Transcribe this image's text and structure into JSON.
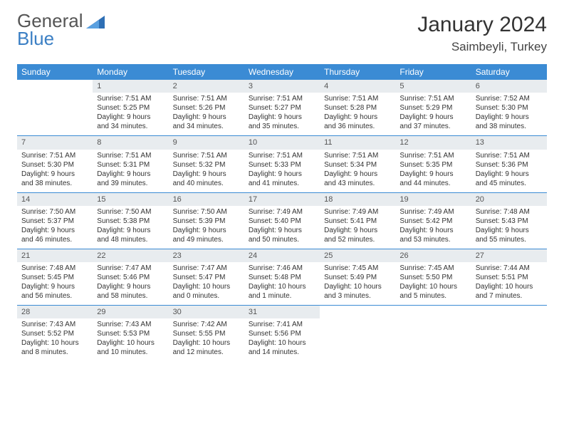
{
  "logo": {
    "word1": "General",
    "word2": "Blue"
  },
  "title": "January 2024",
  "location": "Saimbeyli, Turkey",
  "daynames": [
    "Sunday",
    "Monday",
    "Tuesday",
    "Wednesday",
    "Thursday",
    "Friday",
    "Saturday"
  ],
  "header_bg": "#3b8bd4",
  "rule_color": "#3b8bd4",
  "daynum_bg": "#e8ecef",
  "weeks": [
    [
      null,
      {
        "n": "1",
        "sr": "7:51 AM",
        "ss": "5:25 PM",
        "dl": "9 hours and 34 minutes."
      },
      {
        "n": "2",
        "sr": "7:51 AM",
        "ss": "5:26 PM",
        "dl": "9 hours and 34 minutes."
      },
      {
        "n": "3",
        "sr": "7:51 AM",
        "ss": "5:27 PM",
        "dl": "9 hours and 35 minutes."
      },
      {
        "n": "4",
        "sr": "7:51 AM",
        "ss": "5:28 PM",
        "dl": "9 hours and 36 minutes."
      },
      {
        "n": "5",
        "sr": "7:51 AM",
        "ss": "5:29 PM",
        "dl": "9 hours and 37 minutes."
      },
      {
        "n": "6",
        "sr": "7:52 AM",
        "ss": "5:30 PM",
        "dl": "9 hours and 38 minutes."
      }
    ],
    [
      {
        "n": "7",
        "sr": "7:51 AM",
        "ss": "5:30 PM",
        "dl": "9 hours and 38 minutes."
      },
      {
        "n": "8",
        "sr": "7:51 AM",
        "ss": "5:31 PM",
        "dl": "9 hours and 39 minutes."
      },
      {
        "n": "9",
        "sr": "7:51 AM",
        "ss": "5:32 PM",
        "dl": "9 hours and 40 minutes."
      },
      {
        "n": "10",
        "sr": "7:51 AM",
        "ss": "5:33 PM",
        "dl": "9 hours and 41 minutes."
      },
      {
        "n": "11",
        "sr": "7:51 AM",
        "ss": "5:34 PM",
        "dl": "9 hours and 43 minutes."
      },
      {
        "n": "12",
        "sr": "7:51 AM",
        "ss": "5:35 PM",
        "dl": "9 hours and 44 minutes."
      },
      {
        "n": "13",
        "sr": "7:51 AM",
        "ss": "5:36 PM",
        "dl": "9 hours and 45 minutes."
      }
    ],
    [
      {
        "n": "14",
        "sr": "7:50 AM",
        "ss": "5:37 PM",
        "dl": "9 hours and 46 minutes."
      },
      {
        "n": "15",
        "sr": "7:50 AM",
        "ss": "5:38 PM",
        "dl": "9 hours and 48 minutes."
      },
      {
        "n": "16",
        "sr": "7:50 AM",
        "ss": "5:39 PM",
        "dl": "9 hours and 49 minutes."
      },
      {
        "n": "17",
        "sr": "7:49 AM",
        "ss": "5:40 PM",
        "dl": "9 hours and 50 minutes."
      },
      {
        "n": "18",
        "sr": "7:49 AM",
        "ss": "5:41 PM",
        "dl": "9 hours and 52 minutes."
      },
      {
        "n": "19",
        "sr": "7:49 AM",
        "ss": "5:42 PM",
        "dl": "9 hours and 53 minutes."
      },
      {
        "n": "20",
        "sr": "7:48 AM",
        "ss": "5:43 PM",
        "dl": "9 hours and 55 minutes."
      }
    ],
    [
      {
        "n": "21",
        "sr": "7:48 AM",
        "ss": "5:45 PM",
        "dl": "9 hours and 56 minutes."
      },
      {
        "n": "22",
        "sr": "7:47 AM",
        "ss": "5:46 PM",
        "dl": "9 hours and 58 minutes."
      },
      {
        "n": "23",
        "sr": "7:47 AM",
        "ss": "5:47 PM",
        "dl": "10 hours and 0 minutes."
      },
      {
        "n": "24",
        "sr": "7:46 AM",
        "ss": "5:48 PM",
        "dl": "10 hours and 1 minute."
      },
      {
        "n": "25",
        "sr": "7:45 AM",
        "ss": "5:49 PM",
        "dl": "10 hours and 3 minutes."
      },
      {
        "n": "26",
        "sr": "7:45 AM",
        "ss": "5:50 PM",
        "dl": "10 hours and 5 minutes."
      },
      {
        "n": "27",
        "sr": "7:44 AM",
        "ss": "5:51 PM",
        "dl": "10 hours and 7 minutes."
      }
    ],
    [
      {
        "n": "28",
        "sr": "7:43 AM",
        "ss": "5:52 PM",
        "dl": "10 hours and 8 minutes."
      },
      {
        "n": "29",
        "sr": "7:43 AM",
        "ss": "5:53 PM",
        "dl": "10 hours and 10 minutes."
      },
      {
        "n": "30",
        "sr": "7:42 AM",
        "ss": "5:55 PM",
        "dl": "10 hours and 12 minutes."
      },
      {
        "n": "31",
        "sr": "7:41 AM",
        "ss": "5:56 PM",
        "dl": "10 hours and 14 minutes."
      },
      null,
      null,
      null
    ]
  ],
  "labels": {
    "sunrise": "Sunrise: ",
    "sunset": "Sunset: ",
    "daylight": "Daylight: "
  }
}
